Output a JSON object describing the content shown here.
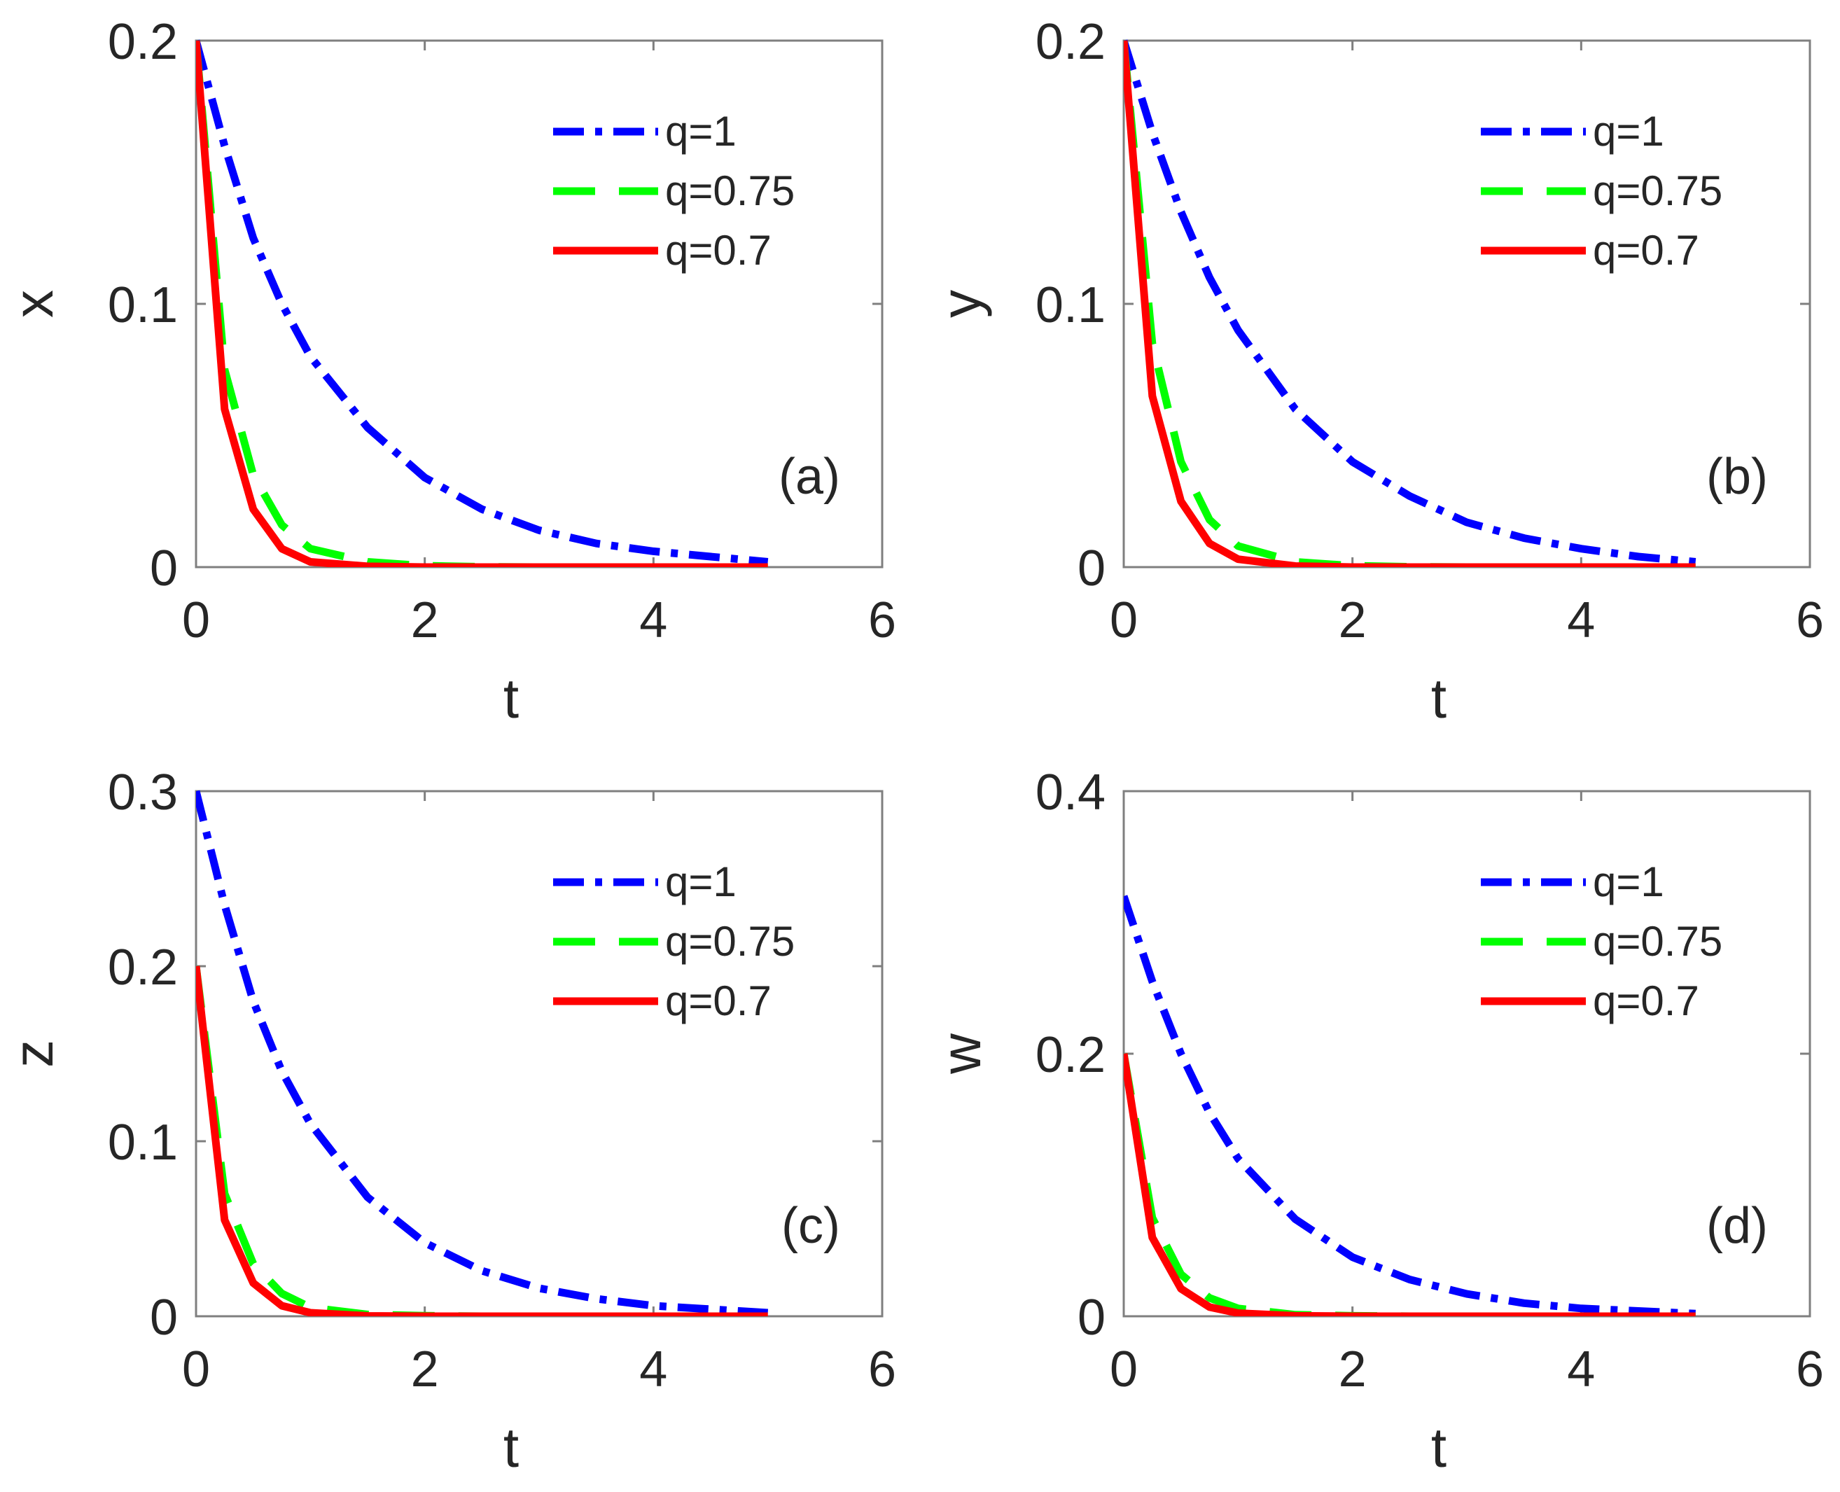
{
  "chart_data": [
    {
      "type": "line",
      "panel_label": "(a)",
      "xlabel": "t",
      "ylabel": "x",
      "xlim": [
        0,
        6
      ],
      "ylim": [
        0,
        0.2
      ],
      "xticks": [
        "0",
        "2",
        "4",
        "6"
      ],
      "yticks": [
        "0",
        "0.1",
        "0.2"
      ],
      "ytick_values": [
        0,
        0.1,
        0.2
      ],
      "legend_position": "top-right",
      "x": [
        0,
        0.25,
        0.5,
        0.75,
        1,
        1.5,
        2,
        2.5,
        3,
        3.5,
        4,
        4.5,
        5
      ],
      "series": [
        {
          "name": "q=1",
          "color": "#0000ff",
          "style": "dash-dot",
          "values": [
            0.2,
            0.16,
            0.125,
            0.1,
            0.08,
            0.053,
            0.034,
            0.022,
            0.014,
            0.009,
            0.006,
            0.004,
            0.002
          ]
        },
        {
          "name": "q=0.75",
          "color": "#00ff00",
          "style": "dashed",
          "values": [
            0.2,
            0.075,
            0.035,
            0.016,
            0.007,
            0.002,
            0.0005,
            0.0001,
            0,
            0,
            0,
            0,
            0
          ]
        },
        {
          "name": "q=0.7",
          "color": "#ff0000",
          "style": "solid",
          "values": [
            0.2,
            0.06,
            0.022,
            0.007,
            0.002,
            0.0003,
            0,
            0,
            0,
            0,
            0,
            0,
            0
          ]
        }
      ]
    },
    {
      "type": "line",
      "panel_label": "(b)",
      "xlabel": "t",
      "ylabel": "y",
      "xlim": [
        0,
        6
      ],
      "ylim": [
        0,
        0.2
      ],
      "xticks": [
        "0",
        "2",
        "4",
        "6"
      ],
      "yticks": [
        "0",
        "0.1",
        "0.2"
      ],
      "ytick_values": [
        0,
        0.1,
        0.2
      ],
      "legend_position": "top-right",
      "x": [
        0,
        0.25,
        0.5,
        0.75,
        1,
        1.5,
        2,
        2.5,
        3,
        3.5,
        4,
        4.5,
        5
      ],
      "series": [
        {
          "name": "q=1",
          "color": "#0000ff",
          "style": "dash-dot",
          "values": [
            0.2,
            0.165,
            0.135,
            0.11,
            0.09,
            0.06,
            0.04,
            0.027,
            0.017,
            0.011,
            0.007,
            0.004,
            0.002
          ]
        },
        {
          "name": "q=0.75",
          "color": "#00ff00",
          "style": "dashed",
          "values": [
            0.2,
            0.085,
            0.04,
            0.018,
            0.008,
            0.002,
            0.0005,
            0.0001,
            0,
            0,
            0,
            0,
            0
          ]
        },
        {
          "name": "q=0.7",
          "color": "#ff0000",
          "style": "solid",
          "values": [
            0.2,
            0.065,
            0.025,
            0.009,
            0.003,
            0.0004,
            0,
            0,
            0,
            0,
            0,
            0,
            0
          ]
        }
      ]
    },
    {
      "type": "line",
      "panel_label": "(c)",
      "xlabel": "t",
      "ylabel": "z",
      "xlim": [
        0,
        6
      ],
      "ylim": [
        0,
        0.3
      ],
      "xticks": [
        "0",
        "2",
        "4",
        "6"
      ],
      "yticks": [
        "0",
        "0.1",
        "0.2",
        "0.3"
      ],
      "ytick_values": [
        0,
        0.1,
        0.2,
        0.3
      ],
      "legend_position": "top-right",
      "x": [
        0,
        0.25,
        0.5,
        0.75,
        1,
        1.5,
        2,
        2.5,
        3,
        3.5,
        4,
        4.5,
        5
      ],
      "series": [
        {
          "name": "q=1",
          "color": "#0000ff",
          "style": "dash-dot",
          "values": [
            0.3,
            0.235,
            0.18,
            0.14,
            0.11,
            0.068,
            0.042,
            0.026,
            0.016,
            0.01,
            0.006,
            0.004,
            0.002
          ]
        },
        {
          "name": "q=0.75",
          "color": "#00ff00",
          "style": "dashed",
          "values": [
            0.2,
            0.07,
            0.03,
            0.013,
            0.005,
            0.001,
            0.0003,
            0,
            0,
            0,
            0,
            0,
            0
          ]
        },
        {
          "name": "q=0.7",
          "color": "#ff0000",
          "style": "solid",
          "values": [
            0.2,
            0.055,
            0.019,
            0.006,
            0.002,
            0.0002,
            0,
            0,
            0,
            0,
            0,
            0,
            0
          ]
        }
      ]
    },
    {
      "type": "line",
      "panel_label": "(d)",
      "xlabel": "t",
      "ylabel": "w",
      "xlim": [
        0,
        6
      ],
      "ylim": [
        0,
        0.4
      ],
      "xticks": [
        "0",
        "2",
        "4",
        "6"
      ],
      "yticks": [
        "0",
        "0.2",
        "0.4"
      ],
      "ytick_values": [
        0,
        0.2,
        0.4
      ],
      "legend_position": "top-right",
      "x": [
        0,
        0.25,
        0.5,
        0.75,
        1,
        1.5,
        2,
        2.5,
        3,
        3.5,
        4,
        4.5,
        5
      ],
      "series": [
        {
          "name": "q=1",
          "color": "#0000ff",
          "style": "dash-dot",
          "values": [
            0.32,
            0.255,
            0.2,
            0.155,
            0.12,
            0.074,
            0.045,
            0.028,
            0.017,
            0.01,
            0.006,
            0.004,
            0.002
          ]
        },
        {
          "name": "q=0.75",
          "color": "#00ff00",
          "style": "dashed",
          "values": [
            0.2,
            0.075,
            0.032,
            0.014,
            0.006,
            0.0012,
            0.0003,
            0,
            0,
            0,
            0,
            0,
            0
          ]
        },
        {
          "name": "q=0.7",
          "color": "#ff0000",
          "style": "solid",
          "values": [
            0.2,
            0.06,
            0.021,
            0.007,
            0.0024,
            0.0003,
            0,
            0,
            0,
            0,
            0,
            0,
            0
          ]
        }
      ]
    }
  ]
}
